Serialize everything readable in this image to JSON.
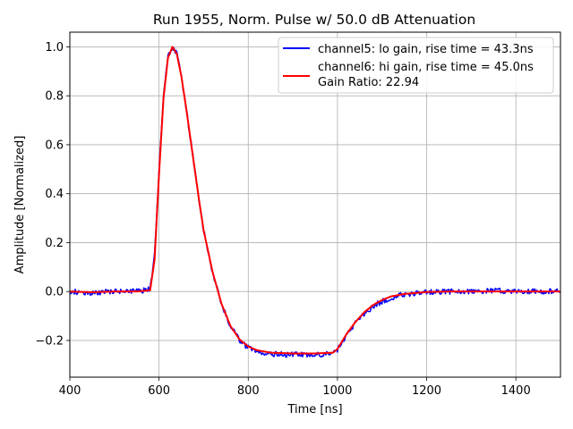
{
  "chart_data": {
    "type": "line",
    "title": "Run 1955, Norm. Pulse w/ 50.0 dB Attenuation",
    "xlabel": "Time [ns]",
    "ylabel": "Amplitude [Normalized]",
    "xlim": [
      400,
      1500
    ],
    "ylim": [
      -0.35,
      1.06
    ],
    "xticks": [
      400,
      600,
      800,
      1000,
      1200,
      1400
    ],
    "yticks": [
      -0.2,
      0.0,
      0.2,
      0.4,
      0.6,
      0.8,
      1.0
    ],
    "ytick_labels": [
      "−0.2",
      "0.0",
      "0.2",
      "0.4",
      "0.6",
      "0.8",
      "1.0"
    ],
    "grid": true,
    "legend_position": "top-right",
    "extra_legend_text": "Gain Ratio: 22.94",
    "series": [
      {
        "name": "channel5: lo gain, rise time = 43.3ns",
        "color": "#0000ff",
        "noise": 0.011,
        "x": [
          400,
          450,
          500,
          550,
          580,
          590,
          600,
          610,
          620,
          630,
          640,
          650,
          660,
          670,
          680,
          690,
          700,
          720,
          740,
          760,
          780,
          800,
          820,
          850,
          900,
          950,
          990,
          1000,
          1010,
          1020,
          1040,
          1060,
          1080,
          1100,
          1120,
          1150,
          1200,
          1250,
          1300,
          1350,
          1400,
          1450,
          1500
        ],
        "y": [
          0.0,
          -0.005,
          0.0,
          0.0,
          0.01,
          0.15,
          0.5,
          0.8,
          0.96,
          0.995,
          0.97,
          0.88,
          0.76,
          0.63,
          0.5,
          0.37,
          0.25,
          0.08,
          -0.05,
          -0.14,
          -0.2,
          -0.23,
          -0.245,
          -0.255,
          -0.258,
          -0.258,
          -0.255,
          -0.24,
          -0.21,
          -0.18,
          -0.13,
          -0.09,
          -0.06,
          -0.04,
          -0.025,
          -0.012,
          -0.003,
          0.0,
          0.0,
          0.005,
          0.0,
          0.0,
          0.0
        ]
      },
      {
        "name": "channel6: hi gain, rise time = 45.0ns",
        "color": "#ff0000",
        "noise": 0.0,
        "x": [
          400,
          450,
          500,
          550,
          580,
          590,
          600,
          610,
          620,
          630,
          640,
          650,
          660,
          670,
          680,
          690,
          700,
          720,
          740,
          760,
          780,
          800,
          820,
          850,
          900,
          950,
          990,
          1000,
          1010,
          1020,
          1040,
          1060,
          1080,
          1100,
          1120,
          1150,
          1200,
          1250,
          1300,
          1350,
          1400,
          1450,
          1500
        ],
        "y": [
          0.0,
          -0.003,
          0.0,
          0.0,
          0.005,
          0.13,
          0.48,
          0.79,
          0.955,
          1.0,
          0.97,
          0.88,
          0.76,
          0.63,
          0.5,
          0.37,
          0.25,
          0.08,
          -0.05,
          -0.14,
          -0.195,
          -0.225,
          -0.24,
          -0.25,
          -0.253,
          -0.253,
          -0.25,
          -0.235,
          -0.205,
          -0.175,
          -0.125,
          -0.085,
          -0.055,
          -0.035,
          -0.02,
          -0.01,
          -0.002,
          0.0,
          0.0,
          0.0,
          0.0,
          0.0,
          0.0
        ]
      }
    ]
  }
}
